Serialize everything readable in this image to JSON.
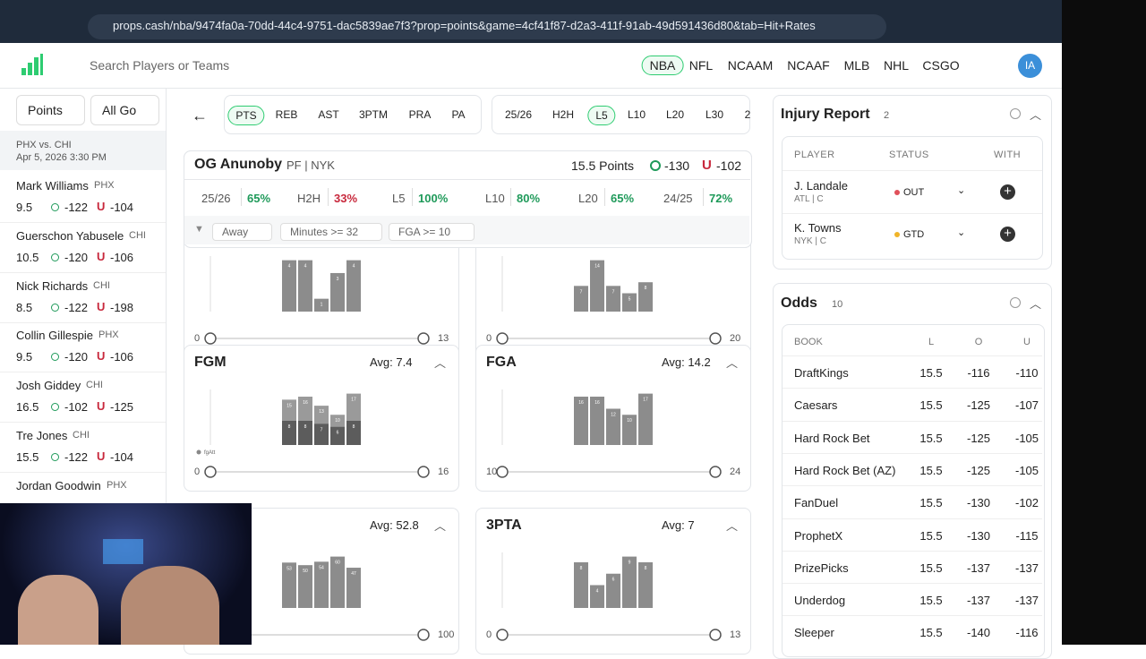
{
  "browser": {
    "url": "props.cash/nba/9474fa0a-70dd-44c4-9751-dac5839ae7f3?prop=points&game=4cf41f87-d2a3-411f-91ab-49d591436d80&tab=Hit+Rates"
  },
  "header": {
    "search_placeholder": "Search Players or Teams",
    "leagues": [
      "NBA",
      "NFL",
      "NCAAM",
      "NCAAF",
      "MLB",
      "NHL",
      "CSGO"
    ],
    "avatar": "IA"
  },
  "sidebar": {
    "filters": [
      "Points",
      "All Go"
    ],
    "game": {
      "matchup": "PHX vs. CHI",
      "date": "Apr 5, 2026 3:30 PM"
    },
    "players": [
      {
        "name": "Mark Williams",
        "team": "PHX",
        "line": "9.5",
        "over": "-122",
        "under": "-104"
      },
      {
        "name": "Guerschon Yabusele",
        "team": "CHI",
        "line": "10.5",
        "over": "-120",
        "under": "-106"
      },
      {
        "name": "Nick Richards",
        "team": "CHI",
        "line": "8.5",
        "over": "-122",
        "under": "-198"
      },
      {
        "name": "Collin Gillespie",
        "team": "PHX",
        "line": "9.5",
        "over": "-120",
        "under": "-106"
      },
      {
        "name": "Josh Giddey",
        "team": "CHI",
        "line": "16.5",
        "over": "-102",
        "under": "-125"
      },
      {
        "name": "Tre Jones",
        "team": "CHI",
        "line": "15.5",
        "over": "-122",
        "under": "-104"
      },
      {
        "name": "Jordan Goodwin",
        "team": "PHX"
      }
    ]
  },
  "main": {
    "stat_tabs": [
      "PTS",
      "REB",
      "AST",
      "3PTM",
      "PRA",
      "PA"
    ],
    "range_tabs": [
      "25/26",
      "H2H",
      "L5",
      "L10",
      "L20",
      "L30",
      "2"
    ],
    "player": {
      "name": "OG Anunoby",
      "pos_team": "PF | NYK",
      "line": "15.5 Points",
      "over": "-130",
      "under": "-102"
    },
    "splits": [
      {
        "label": "25/26",
        "value": "65%"
      },
      {
        "label": "H2H",
        "value": "33%"
      },
      {
        "label": "L5",
        "value": "100%"
      },
      {
        "label": "L10",
        "value": "80%"
      },
      {
        "label": "L20",
        "value": "65%"
      },
      {
        "label": "24/25",
        "value": "72%"
      }
    ],
    "filters": [
      "Away",
      "Minutes >= 32",
      "FGA >= 10"
    ],
    "charts": [
      {
        "slider_min": 0,
        "slider_max": 13,
        "bars": [
          4,
          4,
          1,
          3,
          4
        ]
      },
      {
        "slider_min": 0,
        "slider_max": 20,
        "bars": [
          7,
          14,
          7,
          5,
          8
        ]
      },
      {
        "title": "FGM",
        "avg": "Avg: 7.4",
        "slider_min": 0,
        "slider_max": 16,
        "bars": [
          15,
          16,
          13,
          10,
          17
        ],
        "made": [
          8,
          8,
          7,
          6,
          8
        ],
        "legend": "fgAtt"
      },
      {
        "title": "FGA",
        "avg": "Avg: 14.2",
        "slider_min": 10,
        "slider_max": 24,
        "bars": [
          16,
          16,
          12,
          10,
          17
        ]
      },
      {
        "avg": "Avg: 52.8",
        "slider_max": 100,
        "bars": [
          53,
          50,
          54,
          60,
          47
        ]
      },
      {
        "title": "3PTA",
        "avg": "Avg: 7",
        "slider_min": 0,
        "slider_max": 13,
        "bars": [
          8,
          4,
          6,
          9,
          8
        ]
      }
    ]
  },
  "injury": {
    "title": "Injury Report",
    "count": "2",
    "columns": [
      "PLAYER",
      "STATUS",
      "WITH"
    ],
    "rows": [
      {
        "name": "J. Landale",
        "team": "ATL | C",
        "status": "OUT"
      },
      {
        "name": "K. Towns",
        "team": "NYK | C",
        "status": "GTD"
      }
    ]
  },
  "odds": {
    "title": "Odds",
    "count": "10",
    "columns": [
      "BOOK",
      "L",
      "O",
      "U"
    ],
    "rows": [
      [
        "DraftKings",
        "15.5",
        "-116",
        "-110"
      ],
      [
        "Caesars",
        "15.5",
        "-125",
        "-107"
      ],
      [
        "Hard Rock Bet",
        "15.5",
        "-125",
        "-105"
      ],
      [
        "Hard Rock Bet (AZ)",
        "15.5",
        "-125",
        "-105"
      ],
      [
        "FanDuel",
        "15.5",
        "-130",
        "-102"
      ],
      [
        "ProphetX",
        "15.5",
        "-130",
        "-115"
      ],
      [
        "PrizePicks",
        "15.5",
        "-137",
        "-137"
      ],
      [
        "Underdog",
        "15.5",
        "-137",
        "-137"
      ],
      [
        "Sleeper",
        "15.5",
        "-140",
        "-116"
      ]
    ]
  }
}
